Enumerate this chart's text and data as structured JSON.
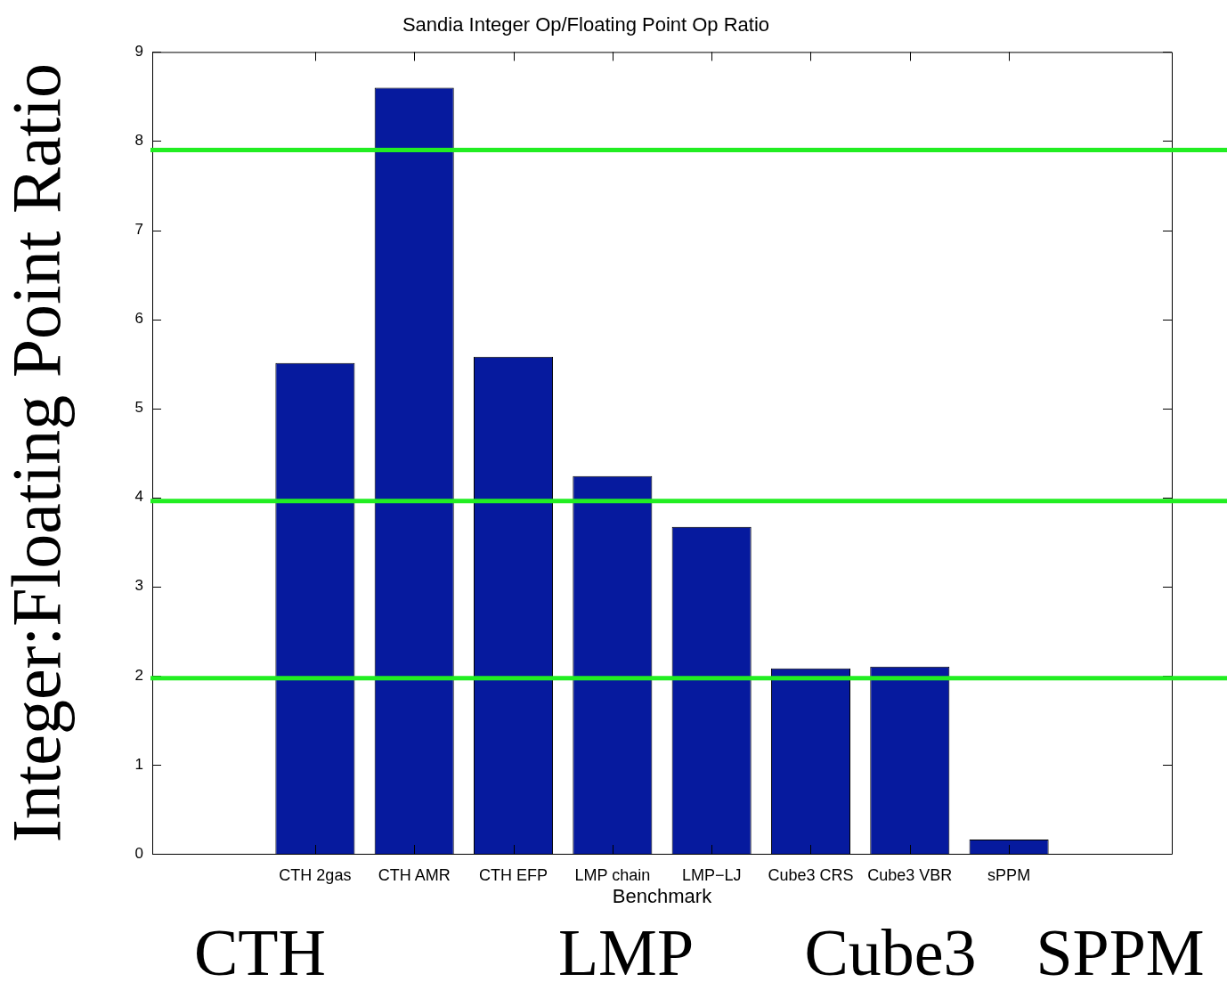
{
  "chart_data": {
    "type": "bar",
    "title": "Sandia Integer Op/Floating Point Op Ratio",
    "xlabel": "Benchmark",
    "ylabel": "Integer:Floating Point Ratio",
    "categories": [
      "CTH 2gas",
      "CTH AMR",
      "CTH EFP",
      "LMP chain",
      "LMP−LJ",
      "Cube3 CRS",
      "Cube3 VBR",
      "sPPM"
    ],
    "values": [
      5.51,
      8.6,
      5.58,
      4.24,
      3.67,
      2.08,
      2.1,
      0.16
    ],
    "color": "#061a9e",
    "ylim": [
      0,
      9
    ],
    "yticks": [
      0,
      1,
      2,
      3,
      4,
      5,
      6,
      7,
      8,
      9
    ],
    "grid": false,
    "legend": false,
    "ref_lines": [
      {
        "axis": "y",
        "value": 7.9,
        "color": "#22ee22"
      },
      {
        "axis": "y",
        "value": 3.96,
        "color": "#22ee22"
      },
      {
        "axis": "y",
        "value": 1.97,
        "color": "#22ee22"
      }
    ],
    "annotations": [
      "CTH",
      "LMP",
      "Cube3",
      "SPPM"
    ]
  }
}
